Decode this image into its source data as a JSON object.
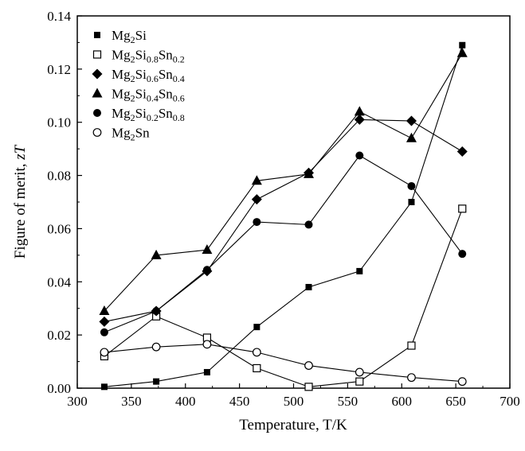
{
  "chart_data": {
    "type": "line",
    "title": "",
    "xlabel": "Temperature, T/K",
    "ylabel": "Figure of merit, zT",
    "xlim": [
      300,
      700
    ],
    "ylim": [
      0.0,
      0.14
    ],
    "xticks": [
      300,
      350,
      400,
      450,
      500,
      550,
      600,
      650,
      700
    ],
    "yticks": [
      0.0,
      0.02,
      0.04,
      0.06,
      0.08,
      0.1,
      0.12,
      0.14
    ],
    "yticklabels": [
      "0.00",
      "0.02",
      "0.04",
      "0.06",
      "0.08",
      "0.10",
      "0.12",
      "0.14"
    ],
    "grid": false,
    "legend_position": "top-left",
    "series": [
      {
        "name": "Mg2Si",
        "legend_parts": [
          [
            "Mg",
            ""
          ],
          [
            "2",
            "sub"
          ],
          [
            "Si",
            ""
          ]
        ],
        "marker": "square-filled",
        "x": [
          325,
          373,
          420,
          466,
          514,
          561,
          609,
          656
        ],
        "y": [
          0.0005,
          0.0025,
          0.006,
          0.023,
          0.038,
          0.044,
          0.07,
          0.129
        ]
      },
      {
        "name": "Mg2Si0.8Sn0.2",
        "legend_parts": [
          [
            "Mg",
            ""
          ],
          [
            "2",
            "sub"
          ],
          [
            "Si",
            ""
          ],
          [
            "0.8",
            "sub"
          ],
          [
            "Sn",
            ""
          ],
          [
            "0.2",
            "sub"
          ]
        ],
        "marker": "square-open",
        "x": [
          325,
          373,
          420,
          466,
          514,
          561,
          609,
          656
        ],
        "y": [
          0.012,
          0.027,
          0.019,
          0.0075,
          0.0005,
          0.0025,
          0.016,
          0.0675
        ]
      },
      {
        "name": "Mg2Si0.6Sn0.4",
        "legend_parts": [
          [
            "Mg",
            ""
          ],
          [
            "2",
            "sub"
          ],
          [
            "Si",
            ""
          ],
          [
            "0.6",
            "sub"
          ],
          [
            "Sn",
            ""
          ],
          [
            "0.4",
            "sub"
          ]
        ],
        "marker": "diamond-filled",
        "x": [
          325,
          373,
          420,
          466,
          514,
          561,
          609,
          656
        ],
        "y": [
          0.025,
          0.029,
          0.044,
          0.071,
          0.081,
          0.101,
          0.1005,
          0.089
        ]
      },
      {
        "name": "Mg2Si0.4Sn0.6",
        "legend_parts": [
          [
            "Mg",
            ""
          ],
          [
            "2",
            "sub"
          ],
          [
            "Si",
            ""
          ],
          [
            "0.4",
            "sub"
          ],
          [
            "Sn",
            ""
          ],
          [
            "0.6",
            "sub"
          ]
        ],
        "marker": "triangle-filled",
        "x": [
          325,
          373,
          420,
          466,
          514,
          561,
          609,
          656
        ],
        "y": [
          0.029,
          0.05,
          0.052,
          0.078,
          0.0805,
          0.104,
          0.094,
          0.126
        ]
      },
      {
        "name": "Mg2Si0.2Sn0.8",
        "legend_parts": [
          [
            "Mg",
            ""
          ],
          [
            "2",
            "sub"
          ],
          [
            "Si",
            ""
          ],
          [
            "0.2",
            "sub"
          ],
          [
            "Sn",
            ""
          ],
          [
            "0.8",
            "sub"
          ]
        ],
        "marker": "circle-filled",
        "x": [
          325,
          373,
          420,
          466,
          514,
          561,
          609,
          656
        ],
        "y": [
          0.021,
          0.029,
          0.0445,
          0.0625,
          0.0615,
          0.0875,
          0.076,
          0.0505
        ]
      },
      {
        "name": "Mg2Sn",
        "legend_parts": [
          [
            "Mg",
            ""
          ],
          [
            "2",
            "sub"
          ],
          [
            "Sn",
            ""
          ]
        ],
        "marker": "circle-open",
        "x": [
          325,
          373,
          420,
          466,
          514,
          561,
          609,
          656
        ],
        "y": [
          0.0135,
          0.0155,
          0.0165,
          0.0135,
          0.0085,
          0.006,
          0.004,
          0.0025
        ]
      }
    ]
  }
}
